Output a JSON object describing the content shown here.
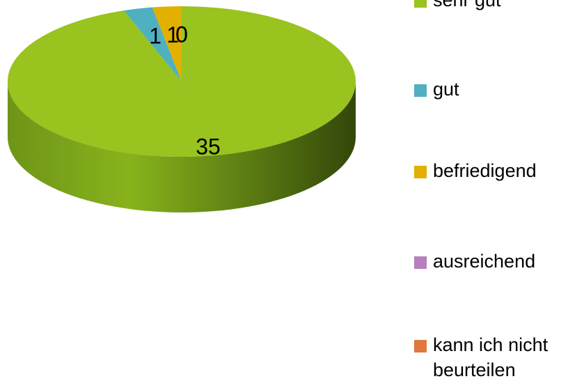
{
  "chart_data": {
    "type": "pie",
    "categories": [
      "sehr gut",
      "gut",
      "befriedigend",
      "ausreichend",
      "kann ich nicht beurteilen"
    ],
    "values": [
      35,
      1,
      1,
      0,
      0
    ],
    "colors": [
      "#99c31f",
      "#4fb0bf",
      "#e1b000",
      "#b87fbf",
      "#e0773c"
    ],
    "legend": "right"
  }
}
